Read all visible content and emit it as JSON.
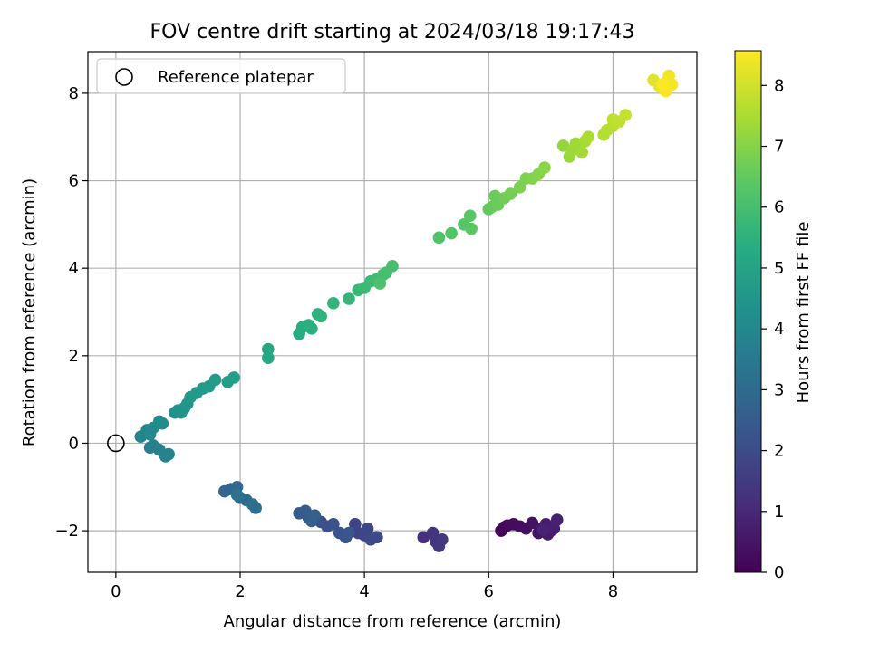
{
  "chart_data": {
    "type": "scatter",
    "title": "FOV centre drift starting at 2024/03/18 19:17:43",
    "xlabel": "Angular distance from reference (arcmin)",
    "ylabel": "Rotation from reference (arcmin)",
    "xlim": [
      -0.45,
      9.35
    ],
    "ylim": [
      -2.95,
      8.95
    ],
    "xticks": [
      0,
      2,
      4,
      6,
      8
    ],
    "yticks": [
      -2,
      0,
      2,
      4,
      6,
      8
    ],
    "grid": true,
    "legend": {
      "placement": "top-left",
      "entries": [
        "Reference platepar"
      ]
    },
    "reference_point": {
      "x": 0,
      "y": 0
    },
    "colorbar": {
      "label": "Hours from first FF file",
      "colormap": "viridis",
      "range": [
        0,
        8.57
      ],
      "ticks": [
        0,
        1,
        2,
        3,
        4,
        5,
        6,
        7,
        8
      ]
    },
    "color_stops": [
      "#440154",
      "#472c7a",
      "#3b518b",
      "#2c718e",
      "#21908d",
      "#27ad81",
      "#5cc863",
      "#aadc32",
      "#fde725"
    ],
    "series": [
      {
        "points": [
          [
            6.2,
            -2.0,
            0.1
          ],
          [
            6.25,
            -1.92,
            0.15
          ],
          [
            6.3,
            -1.88,
            0.2
          ],
          [
            6.4,
            -1.85,
            0.25
          ],
          [
            6.5,
            -1.9,
            0.3
          ],
          [
            6.6,
            -1.95,
            0.35
          ],
          [
            6.7,
            -1.82,
            0.4
          ],
          [
            6.8,
            -2.05,
            0.45
          ],
          [
            6.85,
            -1.95,
            0.5
          ],
          [
            6.9,
            -1.9,
            0.55
          ],
          [
            6.95,
            -2.08,
            0.6
          ],
          [
            7.0,
            -2.0,
            0.65
          ],
          [
            6.92,
            -1.85,
            0.7
          ],
          [
            7.05,
            -1.95,
            0.75
          ],
          [
            7.1,
            -1.75,
            0.8
          ],
          [
            6.88,
            -1.98,
            0.85
          ],
          [
            4.95,
            -2.15,
            1.2
          ],
          [
            5.1,
            -2.05,
            1.3
          ],
          [
            5.15,
            -2.25,
            1.35
          ],
          [
            5.2,
            -2.35,
            1.4
          ],
          [
            5.25,
            -2.2,
            1.45
          ],
          [
            3.85,
            -1.85,
            1.7
          ],
          [
            3.9,
            -2.05,
            1.75
          ],
          [
            4.0,
            -2.1,
            1.8
          ],
          [
            4.05,
            -1.95,
            1.85
          ],
          [
            4.1,
            -2.2,
            1.9
          ],
          [
            4.2,
            -2.15,
            1.95
          ],
          [
            3.3,
            -1.8,
            2.1
          ],
          [
            3.4,
            -1.9,
            2.15
          ],
          [
            3.5,
            -1.85,
            2.2
          ],
          [
            3.6,
            -2.05,
            2.25
          ],
          [
            3.7,
            -2.15,
            2.3
          ],
          [
            3.75,
            -2.05,
            2.35
          ],
          [
            2.95,
            -1.6,
            2.45
          ],
          [
            3.05,
            -1.55,
            2.5
          ],
          [
            3.1,
            -1.7,
            2.55
          ],
          [
            3.15,
            -1.78,
            2.6
          ],
          [
            3.2,
            -1.65,
            2.65
          ],
          [
            1.75,
            -1.1,
            2.85
          ],
          [
            1.85,
            -1.05,
            2.9
          ],
          [
            1.95,
            -1.0,
            2.95
          ],
          [
            2.0,
            -1.25,
            3.0
          ],
          [
            2.1,
            -1.3,
            3.05
          ],
          [
            2.2,
            -1.4,
            3.1
          ],
          [
            2.25,
            -1.48,
            3.15
          ],
          [
            1.95,
            -1.18,
            3.2
          ],
          [
            0.55,
            -0.1,
            3.65
          ],
          [
            0.6,
            -0.05,
            3.7
          ],
          [
            0.7,
            -0.15,
            3.75
          ],
          [
            0.8,
            -0.3,
            3.8
          ],
          [
            0.85,
            -0.25,
            3.85
          ],
          [
            0.4,
            0.15,
            3.9
          ],
          [
            0.5,
            0.3,
            3.95
          ],
          [
            0.55,
            0.2,
            4.0
          ],
          [
            0.6,
            0.35,
            4.05
          ],
          [
            0.7,
            0.5,
            4.1
          ],
          [
            0.75,
            0.45,
            4.15
          ],
          [
            0.95,
            0.7,
            4.3
          ],
          [
            1.0,
            0.75,
            4.35
          ],
          [
            1.1,
            0.8,
            4.4
          ],
          [
            1.05,
            0.7,
            4.45
          ],
          [
            1.15,
            0.9,
            4.5
          ],
          [
            1.2,
            1.05,
            4.55
          ],
          [
            1.3,
            1.15,
            4.6
          ],
          [
            1.4,
            1.25,
            4.65
          ],
          [
            1.5,
            1.3,
            4.7
          ],
          [
            1.6,
            1.45,
            4.75
          ],
          [
            1.8,
            1.4,
            4.8
          ],
          [
            1.9,
            1.5,
            4.85
          ],
          [
            2.45,
            1.95,
            5.1
          ],
          [
            2.45,
            2.15,
            5.15
          ],
          [
            2.95,
            2.5,
            5.3
          ],
          [
            3.0,
            2.65,
            5.35
          ],
          [
            3.1,
            2.7,
            5.4
          ],
          [
            3.15,
            2.62,
            5.45
          ],
          [
            3.25,
            2.95,
            5.5
          ],
          [
            3.3,
            2.9,
            5.55
          ],
          [
            3.5,
            3.2,
            5.6
          ],
          [
            3.75,
            3.3,
            5.65
          ],
          [
            3.9,
            3.5,
            5.75
          ],
          [
            4.0,
            3.55,
            5.8
          ],
          [
            4.1,
            3.7,
            5.85
          ],
          [
            4.2,
            3.75,
            5.9
          ],
          [
            4.3,
            3.85,
            5.95
          ],
          [
            4.35,
            3.9,
            6.0
          ],
          [
            4.45,
            4.05,
            6.05
          ],
          [
            4.25,
            3.65,
            6.1
          ],
          [
            5.2,
            4.7,
            6.2
          ],
          [
            5.4,
            4.8,
            6.25
          ],
          [
            5.6,
            5.0,
            6.3
          ],
          [
            5.7,
            5.2,
            6.35
          ],
          [
            5.72,
            4.9,
            6.4
          ],
          [
            6.0,
            5.35,
            6.5
          ],
          [
            6.05,
            5.4,
            6.55
          ],
          [
            6.1,
            5.65,
            6.6
          ],
          [
            6.15,
            5.45,
            6.65
          ],
          [
            6.25,
            5.6,
            6.7
          ],
          [
            6.35,
            5.7,
            6.75
          ],
          [
            6.5,
            5.85,
            6.85
          ],
          [
            6.6,
            6.05,
            6.9
          ],
          [
            6.7,
            6.05,
            6.95
          ],
          [
            6.8,
            6.15,
            7.0
          ],
          [
            6.9,
            6.3,
            7.05
          ],
          [
            7.2,
            6.8,
            7.2
          ],
          [
            7.3,
            6.55,
            7.25
          ],
          [
            7.35,
            6.7,
            7.3
          ],
          [
            7.4,
            6.85,
            7.35
          ],
          [
            7.5,
            6.65,
            7.4
          ],
          [
            7.55,
            6.9,
            7.45
          ],
          [
            7.6,
            7.0,
            7.5
          ],
          [
            7.85,
            7.05,
            7.6
          ],
          [
            7.9,
            7.15,
            7.65
          ],
          [
            8.0,
            7.25,
            7.7
          ],
          [
            8.0,
            7.4,
            7.75
          ],
          [
            8.1,
            7.35,
            7.8
          ],
          [
            8.2,
            7.5,
            7.85
          ],
          [
            8.65,
            8.3,
            8.2
          ],
          [
            8.75,
            8.15,
            8.25
          ],
          [
            8.8,
            8.1,
            8.3
          ],
          [
            8.85,
            8.25,
            8.35
          ],
          [
            8.9,
            8.4,
            8.4
          ],
          [
            8.95,
            8.2,
            8.45
          ],
          [
            8.85,
            8.05,
            8.5
          ],
          [
            8.8,
            8.2,
            8.55
          ]
        ]
      }
    ]
  }
}
